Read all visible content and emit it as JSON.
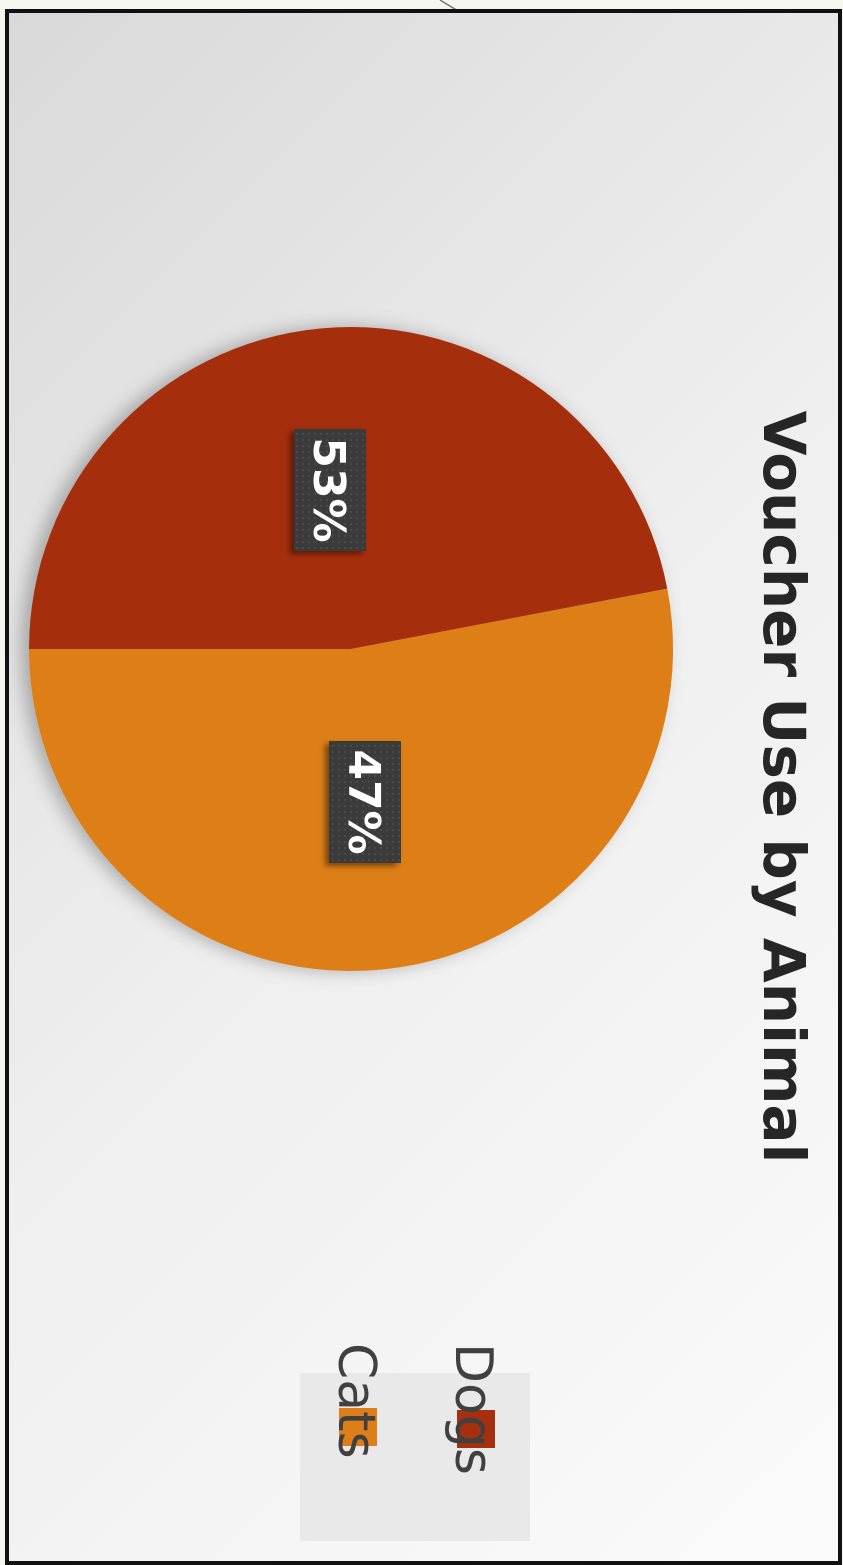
{
  "chart_data": {
    "type": "pie",
    "title": "Voucher Use by Animal",
    "categories": [
      "Dogs",
      "Cats"
    ],
    "values": [
      47,
      53
    ],
    "value_labels": [
      "47%",
      "53%"
    ],
    "colors": [
      "#a52f0e",
      "#dd7e19"
    ],
    "legend": {
      "position": "right",
      "entries": [
        "Dogs",
        "Cats"
      ]
    },
    "label_background": "#333333",
    "orientation": "rotated 90 degrees clockwise"
  }
}
